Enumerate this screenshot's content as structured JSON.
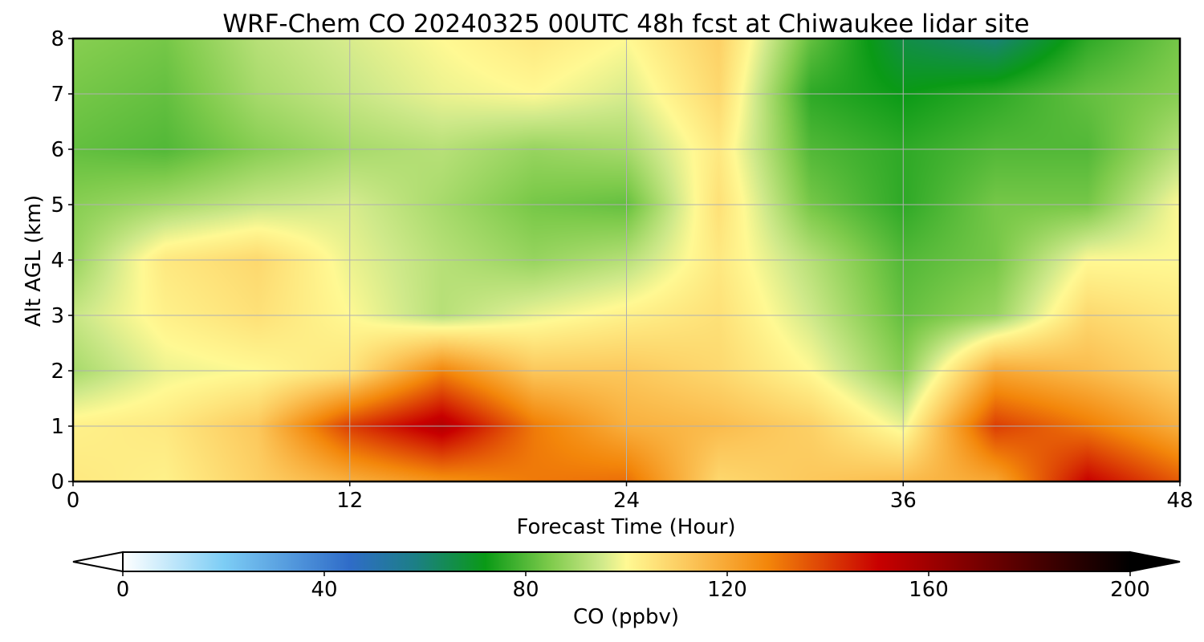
{
  "chart_data": {
    "type": "heatmap",
    "title": "WRF-Chem CO  20240325 00UTC 48h fcst at Chiwaukee lidar site",
    "xlabel": "Forecast Time (Hour)",
    "ylabel": "Alt AGL (km)",
    "xlim": [
      0,
      48
    ],
    "ylim": [
      0,
      8
    ],
    "x_ticks": [
      "0",
      "12",
      "24",
      "36",
      "48"
    ],
    "y_ticks": [
      "0",
      "1",
      "2",
      "3",
      "4",
      "5",
      "6",
      "7",
      "8"
    ],
    "grid": true,
    "colorbar": {
      "label": "CO  (ppbv)",
      "range": [
        0,
        200
      ],
      "ticks": [
        "0",
        "40",
        "80",
        "120",
        "160",
        "200"
      ],
      "extend": "both",
      "stops": [
        {
          "v": 0,
          "c": "#ffffff"
        },
        {
          "v": 20,
          "c": "#7dcdf5"
        },
        {
          "v": 45,
          "c": "#2f6cc8"
        },
        {
          "v": 58,
          "c": "#1c7f86"
        },
        {
          "v": 72,
          "c": "#0a9a16"
        },
        {
          "v": 85,
          "c": "#7fcb4c"
        },
        {
          "v": 95,
          "c": "#cfe98a"
        },
        {
          "v": 100,
          "c": "#fff993"
        },
        {
          "v": 112,
          "c": "#fcc85c"
        },
        {
          "v": 128,
          "c": "#f3860a"
        },
        {
          "v": 150,
          "c": "#c80000"
        },
        {
          "v": 185,
          "c": "#3a0000"
        },
        {
          "v": 200,
          "c": "#000000"
        }
      ]
    },
    "grid_x_hours": [
      0,
      4,
      8,
      12,
      16,
      20,
      24,
      28,
      32,
      36,
      40,
      44,
      48
    ],
    "grid_y_km": [
      0,
      1,
      2,
      3,
      4,
      5,
      6,
      7,
      8
    ],
    "values_ppbv": [
      [
        104,
        102,
        110,
        118,
        125,
        130,
        132,
        108,
        112,
        115,
        120,
        150,
        135
      ],
      [
        102,
        104,
        112,
        140,
        155,
        130,
        118,
        115,
        110,
        98,
        140,
        130,
        118
      ],
      [
        90,
        98,
        100,
        105,
        128,
        112,
        112,
        108,
        100,
        86,
        120,
        115,
        108
      ],
      [
        94,
        102,
        106,
        100,
        92,
        98,
        102,
        106,
        95,
        82,
        88,
        108,
        104
      ],
      [
        88,
        104,
        108,
        98,
        92,
        88,
        92,
        104,
        92,
        80,
        84,
        100,
        100
      ],
      [
        86,
        90,
        94,
        96,
        90,
        84,
        82,
        106,
        84,
        76,
        84,
        84,
        100
      ],
      [
        82,
        80,
        86,
        90,
        92,
        88,
        90,
        104,
        80,
        76,
        80,
        80,
        92
      ],
      [
        84,
        82,
        90,
        94,
        98,
        100,
        96,
        108,
        76,
        72,
        76,
        82,
        86
      ],
      [
        86,
        84,
        92,
        96,
        100,
        104,
        100,
        110,
        82,
        66,
        60,
        76,
        84
      ]
    ]
  }
}
